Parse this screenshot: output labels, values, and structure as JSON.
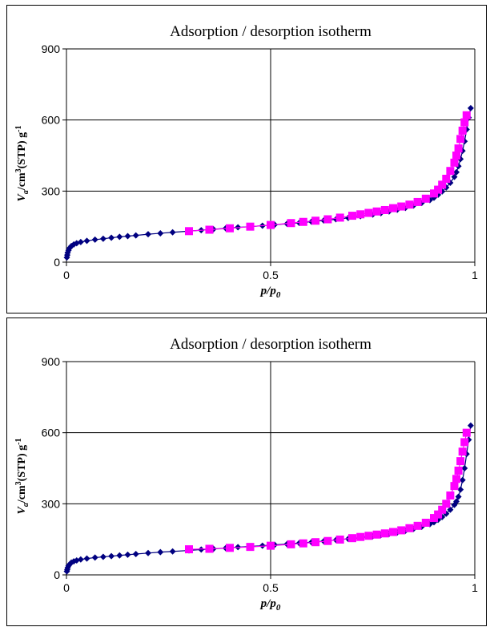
{
  "chart_data": [
    {
      "type": "scatter",
      "title": "Adsorption / desorption isotherm",
      "xlabel": "p/p0",
      "xlabel_parts": [
        "p",
        "/",
        "p",
        "0"
      ],
      "ylabel": "Va/cm3(STP) g-1",
      "ylabel_parts": [
        "V",
        "a",
        "/cm",
        "3",
        "(STP) g",
        "-1"
      ],
      "xlim": [
        0,
        1
      ],
      "ylim": [
        0,
        900
      ],
      "xticks": [
        "0",
        "0.5",
        "1"
      ],
      "yticks": [
        "0",
        "300",
        "600",
        "900"
      ],
      "grid": true,
      "series": [
        {
          "color": "#000080",
          "marker": "diamond",
          "x": [
            0.001,
            0.002,
            0.003,
            0.005,
            0.008,
            0.012,
            0.018,
            0.025,
            0.035,
            0.05,
            0.07,
            0.09,
            0.11,
            0.13,
            0.15,
            0.17,
            0.2,
            0.23,
            0.26,
            0.3,
            0.33,
            0.36,
            0.39,
            0.42,
            0.45,
            0.48,
            0.51,
            0.54,
            0.57,
            0.6,
            0.63,
            0.66,
            0.69,
            0.72,
            0.75,
            0.77,
            0.79,
            0.81,
            0.83,
            0.85,
            0.87,
            0.89,
            0.9,
            0.91,
            0.92,
            0.93,
            0.94,
            0.95,
            0.955,
            0.96,
            0.965,
            0.97,
            0.975,
            0.98,
            0.985,
            0.99
          ],
          "y": [
            20,
            30,
            40,
            50,
            60,
            68,
            75,
            80,
            85,
            90,
            95,
            99,
            103,
            107,
            110,
            113,
            118,
            122,
            126,
            131,
            135,
            139,
            143,
            147,
            150,
            154,
            158,
            162,
            166,
            171,
            176,
            181,
            187,
            194,
            201,
            207,
            214,
            221,
            229,
            239,
            250,
            262,
            272,
            284,
            298,
            315,
            335,
            360,
            380,
            405,
            435,
            470,
            510,
            560,
            610,
            650
          ]
        },
        {
          "color": "#ff00ff",
          "marker": "square",
          "x": [
            0.98,
            0.975,
            0.97,
            0.965,
            0.96,
            0.955,
            0.95,
            0.94,
            0.93,
            0.92,
            0.91,
            0.9,
            0.88,
            0.86,
            0.84,
            0.82,
            0.8,
            0.78,
            0.76,
            0.74,
            0.72,
            0.7,
            0.67,
            0.64,
            0.61,
            0.58,
            0.55,
            0.5,
            0.45,
            0.4,
            0.35,
            0.3
          ],
          "y": [
            620,
            590,
            555,
            520,
            480,
            450,
            420,
            385,
            352,
            327,
            306,
            290,
            268,
            254,
            243,
            235,
            228,
            220,
            214,
            208,
            202,
            196,
            188,
            181,
            175,
            170,
            165,
            157,
            150,
            143,
            137,
            131
          ]
        }
      ]
    },
    {
      "type": "scatter",
      "title": "Adsorption / desorption isotherm",
      "xlabel": "p/p0",
      "xlabel_parts": [
        "p",
        "/",
        "p",
        "0"
      ],
      "ylabel": "Va/cm3(STP) g-1",
      "ylabel_parts": [
        "V",
        "a",
        "/cm",
        "3",
        "(STP) g",
        "-1"
      ],
      "xlim": [
        0,
        1
      ],
      "ylim": [
        0,
        900
      ],
      "xticks": [
        "0",
        "0.5",
        "1"
      ],
      "yticks": [
        "0",
        "300",
        "600",
        "900"
      ],
      "grid": true,
      "series": [
        {
          "color": "#000080",
          "marker": "diamond",
          "x": [
            0.001,
            0.002,
            0.003,
            0.005,
            0.008,
            0.012,
            0.018,
            0.025,
            0.035,
            0.05,
            0.07,
            0.09,
            0.11,
            0.13,
            0.15,
            0.17,
            0.2,
            0.23,
            0.26,
            0.3,
            0.33,
            0.36,
            0.39,
            0.42,
            0.45,
            0.48,
            0.51,
            0.54,
            0.57,
            0.6,
            0.63,
            0.66,
            0.69,
            0.72,
            0.75,
            0.77,
            0.79,
            0.81,
            0.83,
            0.85,
            0.87,
            0.89,
            0.9,
            0.91,
            0.92,
            0.93,
            0.94,
            0.95,
            0.955,
            0.96,
            0.965,
            0.97,
            0.975,
            0.98,
            0.985,
            0.99
          ],
          "y": [
            15,
            22,
            30,
            38,
            45,
            52,
            57,
            61,
            65,
            69,
            73,
            76,
            79,
            82,
            85,
            88,
            92,
            96,
            99,
            103,
            107,
            110,
            113,
            117,
            120,
            123,
            127,
            130,
            134,
            138,
            142,
            147,
            152,
            157,
            163,
            168,
            173,
            179,
            186,
            194,
            203,
            214,
            222,
            232,
            244,
            258,
            275,
            295,
            310,
            330,
            360,
            400,
            450,
            510,
            570,
            630
          ]
        },
        {
          "color": "#ff00ff",
          "marker": "square",
          "x": [
            0.98,
            0.975,
            0.97,
            0.965,
            0.96,
            0.955,
            0.95,
            0.94,
            0.93,
            0.92,
            0.91,
            0.9,
            0.88,
            0.86,
            0.84,
            0.82,
            0.8,
            0.78,
            0.76,
            0.74,
            0.72,
            0.7,
            0.67,
            0.64,
            0.61,
            0.58,
            0.55,
            0.5,
            0.45,
            0.4,
            0.35,
            0.3
          ],
          "y": [
            600,
            560,
            520,
            480,
            440,
            405,
            375,
            335,
            300,
            275,
            255,
            240,
            220,
            207,
            197,
            188,
            181,
            175,
            170,
            165,
            160,
            155,
            149,
            143,
            138,
            133,
            129,
            123,
            118,
            114,
            110,
            108
          ]
        }
      ]
    }
  ]
}
